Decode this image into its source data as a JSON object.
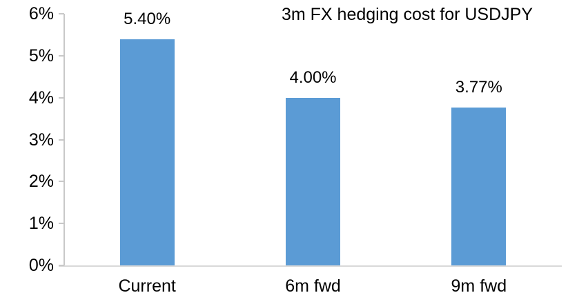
{
  "chart_data": {
    "type": "bar",
    "title": "3m FX hedging cost for USDJPY",
    "categories": [
      "Current",
      "6m fwd",
      "9m fwd"
    ],
    "values": [
      5.4,
      4.0,
      3.77
    ],
    "value_labels": [
      "5.40%",
      "4.00%",
      "3.77%"
    ],
    "xlabel": "",
    "ylabel": "",
    "ylim": [
      0,
      6
    ],
    "y_tick_labels": [
      "0%",
      "1%",
      "2%",
      "3%",
      "4%",
      "5%",
      "6%"
    ],
    "grid": false,
    "legend": "none",
    "colors": {
      "bar": "#5B9BD5",
      "x_axis_line": "#D9D9D9",
      "y_axis_line": "#C8C8C8",
      "text": "#000000",
      "background": "#FFFFFF"
    }
  }
}
